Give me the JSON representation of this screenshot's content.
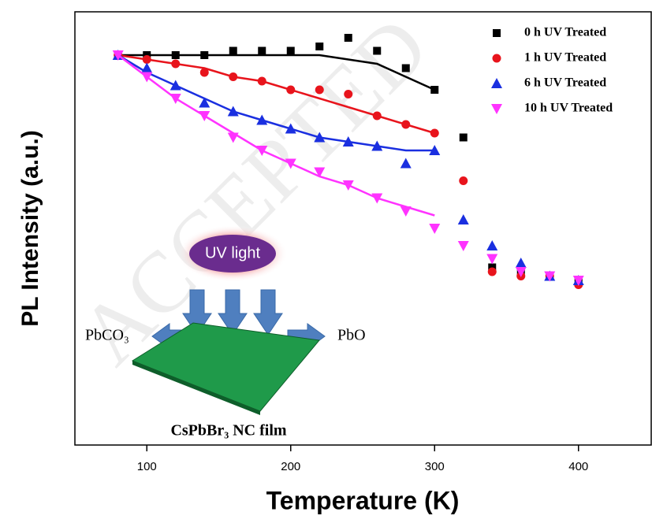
{
  "chart_data": {
    "type": "scatter",
    "xlabel": "Temperature (K)",
    "ylabel": "PL Intensity (a.u.)",
    "watermark": "ACCEPTED",
    "xlim": [
      50,
      450
    ],
    "xticks": [
      100,
      200,
      300,
      400
    ],
    "ylim": [
      0,
      1
    ],
    "x": [
      80,
      100,
      120,
      140,
      160,
      180,
      200,
      220,
      240,
      260,
      280,
      300,
      320,
      340,
      360,
      380,
      400
    ],
    "fit_x": [
      80,
      100,
      120,
      140,
      160,
      180,
      200,
      220,
      240,
      260,
      280,
      300
    ],
    "series": [
      {
        "name": "0 h UV Treated",
        "color": "#000000",
        "marker": "square",
        "values": [
          0.9,
          0.9,
          0.9,
          0.9,
          0.91,
          0.91,
          0.91,
          0.92,
          0.94,
          0.91,
          0.87,
          0.82,
          0.71,
          0.41,
          0.4,
          0.39,
          0.38
        ],
        "fit": [
          0.9,
          0.9,
          0.9,
          0.9,
          0.9,
          0.9,
          0.9,
          0.9,
          0.89,
          0.88,
          0.85,
          0.82
        ]
      },
      {
        "name": "1 h UV Treated",
        "color": "#e8141c",
        "marker": "circle",
        "values": [
          0.9,
          0.89,
          0.88,
          0.86,
          0.85,
          0.84,
          0.82,
          0.82,
          0.81,
          0.76,
          0.74,
          0.72,
          0.61,
          0.4,
          0.39,
          0.39,
          0.37
        ],
        "fit": [
          0.9,
          0.89,
          0.88,
          0.87,
          0.85,
          0.84,
          0.82,
          0.8,
          0.78,
          0.76,
          0.74,
          0.72
        ]
      },
      {
        "name": "6 h UV Treated",
        "color": "#1a2fe0",
        "marker": "triangle-up",
        "values": [
          0.9,
          0.87,
          0.83,
          0.79,
          0.77,
          0.75,
          0.73,
          0.71,
          0.7,
          0.69,
          0.65,
          0.68,
          0.52,
          0.46,
          0.42,
          0.39,
          0.38
        ],
        "fit": [
          0.9,
          0.86,
          0.83,
          0.8,
          0.77,
          0.75,
          0.73,
          0.71,
          0.7,
          0.69,
          0.68,
          0.68
        ]
      },
      {
        "name": "10 h UV Treated",
        "color": "#ff33ff",
        "marker": "triangle-down",
        "values": [
          0.9,
          0.85,
          0.8,
          0.76,
          0.71,
          0.68,
          0.65,
          0.63,
          0.6,
          0.57,
          0.54,
          0.5,
          0.46,
          0.43,
          0.4,
          0.39,
          0.38
        ],
        "fit": [
          0.9,
          0.85,
          0.8,
          0.76,
          0.72,
          0.68,
          0.65,
          0.62,
          0.6,
          0.57,
          0.55,
          0.53
        ]
      }
    ],
    "inset": {
      "source": "UV light",
      "left_product": "PbCO₃",
      "right_product": "PbO",
      "film": "CsPbBr₃ NC film"
    }
  }
}
